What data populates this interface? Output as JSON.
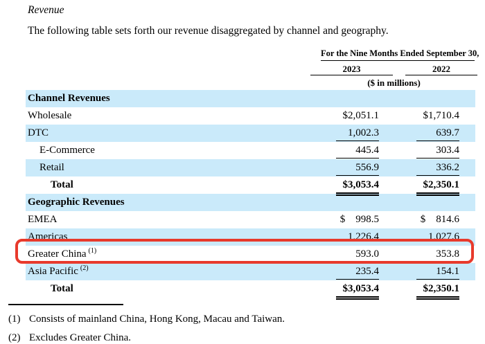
{
  "doc": {
    "section_title": "Revenue",
    "intro_text": "The following table sets forth our revenue disaggregated by channel and geography."
  },
  "table": {
    "period_header": "For the Nine Months Ended September 30,",
    "year_columns": [
      "2023",
      "2022"
    ],
    "units_note": "($ in millions)",
    "rows": [
      {
        "label": "Channel Revenues",
        "v1": "",
        "v2": ""
      },
      {
        "label": "Wholesale",
        "v1": "$2,051.1",
        "v2": "$1,710.4"
      },
      {
        "label": "DTC",
        "v1": "1,002.3",
        "v2": "639.7"
      },
      {
        "label": "E-Commerce",
        "v1": "445.4",
        "v2": "303.4"
      },
      {
        "label": "Retail",
        "v1": "556.9",
        "v2": "336.2"
      },
      {
        "label": "Total",
        "v1": "$3,053.4",
        "v2": "$2,350.1"
      },
      {
        "label": "Geographic Revenues",
        "v1": "",
        "v2": ""
      },
      {
        "label": "EMEA",
        "v1": "$    998.5",
        "v2": "$    814.6"
      },
      {
        "label": "Americas",
        "v1": "1,226.4",
        "v2": "1,027.6"
      },
      {
        "label": "Greater China",
        "sup": "(1)",
        "v1": "593.0",
        "v2": "353.8"
      },
      {
        "label": "Asia Pacific",
        "sup": "(2)",
        "v1": "235.4",
        "v2": "154.1"
      },
      {
        "label": "Total",
        "v1": "$3,053.4",
        "v2": "$2,350.1"
      }
    ]
  },
  "colors": {
    "row_shade": "#caeafa",
    "highlight_red": "#e83a2c"
  },
  "highlight": {
    "target": "greater-china-row"
  },
  "footnotes": [
    {
      "marker": "(1)",
      "text": "Consists of mainland China, Hong Kong, Macau and Taiwan."
    },
    {
      "marker": "(2)",
      "text": "Excludes Greater China."
    }
  ]
}
